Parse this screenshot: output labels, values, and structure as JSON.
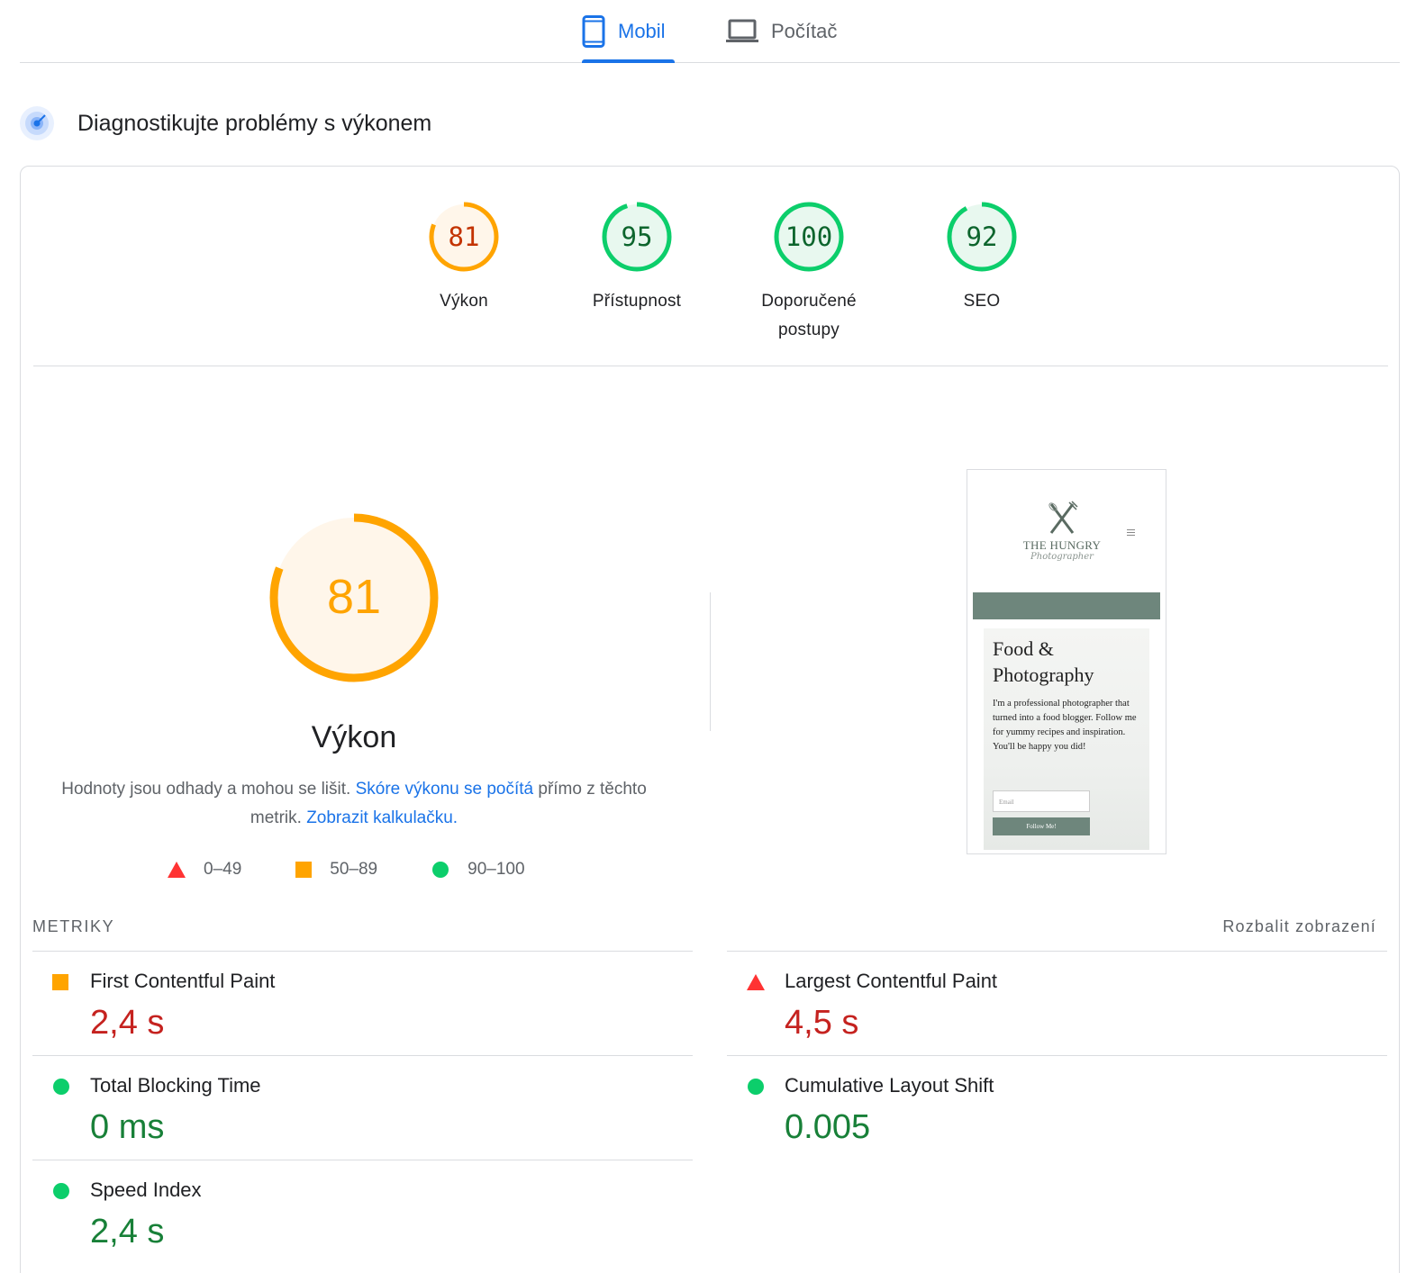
{
  "tabs": [
    {
      "label": "Mobil",
      "icon": "smartphone-icon",
      "active": true
    },
    {
      "label": "Počítač",
      "icon": "laptop-icon",
      "active": false
    }
  ],
  "section": {
    "title": "Diagnostikujte problémy s výkonem",
    "icon": "lighthouse-icon"
  },
  "gauges": [
    {
      "score": "81",
      "label": "Výkon",
      "value": 81,
      "color": "#ffa400"
    },
    {
      "score": "95",
      "label": "Přístupnost",
      "value": 95,
      "color": "#0cce6b"
    },
    {
      "score": "100",
      "label_line1": "Doporučené",
      "label_line2": "postupy",
      "value": 100,
      "color": "#0cce6b"
    },
    {
      "score": "92",
      "label": "SEO",
      "value": 92,
      "color": "#0cce6b"
    }
  ],
  "main": {
    "score": "81",
    "value": 81,
    "title": "Výkon",
    "disclaimer_text": "Hodnoty jsou odhady a mohou se lišit.",
    "disclaimer_link1": "Skóre výkonu se počítá",
    "disclaimer_text2": "přímo z těchto metrik.",
    "disclaimer_link2": "Zobrazit kalkulačku."
  },
  "legend": [
    {
      "range": "0–49",
      "shape": "triangle",
      "color": "#ff3333"
    },
    {
      "range": "50–89",
      "shape": "square",
      "color": "#ffa400"
    },
    {
      "range": "90–100",
      "shape": "circle",
      "color": "#0cce6b"
    }
  ],
  "screenshot": {
    "logo_name": "THE HUNGRY",
    "logo_script": "Photographer",
    "hero_title_1": "Food &",
    "hero_title_2": "Photography",
    "hero_text": "I'm a professional photographer that turned into a food blogger. Follow me for yummy recipes and inspiration. You'll be happy you did!",
    "email_placeholder": "Email",
    "button": "Follow Me!"
  },
  "metrics_header": {
    "label": "METRIKY",
    "expand": "Rozbalit zobrazení"
  },
  "metrics": {
    "fcp": {
      "name": "First Contentful Paint",
      "value": "2,4 s",
      "status": "average"
    },
    "lcp": {
      "name": "Largest Contentful Paint",
      "value": "4,5 s",
      "status": "fail"
    },
    "tbt": {
      "name": "Total Blocking Time",
      "value": "0 ms",
      "status": "pass"
    },
    "cls": {
      "name": "Cumulative Layout Shift",
      "value": "0.005",
      "status": "pass"
    },
    "si": {
      "name": "Speed Index",
      "value": "2,4 s",
      "status": "pass"
    }
  },
  "colors": {
    "accent": "#1a73e8",
    "orange": "#ffa400",
    "green": "#0cce6b",
    "red": "#ff3333"
  }
}
